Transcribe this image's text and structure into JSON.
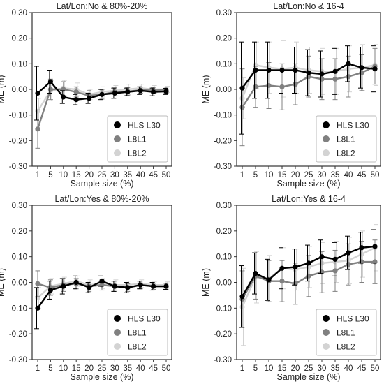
{
  "legend_colors": {
    "HLS L30": "#000000",
    "L8L1": "#808080",
    "L8L2": "#d3d3d3"
  },
  "chart_data": [
    {
      "type": "line",
      "title": "Lat/Lon:No & 80%-20%",
      "xlabel": "Sample size (%)",
      "ylabel": "ME (m)",
      "categories": [
        "1",
        "5",
        "10",
        "15",
        "20",
        "25",
        "30",
        "35",
        "40",
        "45",
        "50"
      ],
      "ylim": [
        -0.3,
        0.3
      ],
      "yticks": [
        "0.30",
        "0.20",
        "0.10",
        "0.00",
        "-0.10",
        "-0.20",
        "-0.30"
      ],
      "grid": false,
      "legend_position": "bottom-right",
      "series": [
        {
          "name": "HLS L30",
          "values": [
            -0.015,
            0.03,
            -0.03,
            -0.04,
            -0.035,
            -0.02,
            -0.015,
            -0.01,
            -0.005,
            -0.01,
            -0.008
          ],
          "errors": [
            0.105,
            0.045,
            0.025,
            0.02,
            0.02,
            0.02,
            0.02,
            0.015,
            0.015,
            0.015,
            0.012
          ]
        },
        {
          "name": "L8L1",
          "values": [
            -0.155,
            0.0,
            0.0,
            -0.01,
            -0.025,
            -0.02,
            -0.01,
            -0.008,
            -0.003,
            -0.004,
            -0.003
          ],
          "errors": [
            0.075,
            0.04,
            0.03,
            0.02,
            0.02,
            0.018,
            0.016,
            0.015,
            0.012,
            0.012,
            0.012
          ]
        },
        {
          "name": "L8L2",
          "values": [
            -0.085,
            -0.005,
            0.005,
            0.0,
            -0.02,
            -0.01,
            -0.005,
            0.0,
            0.005,
            0.0,
            0.0
          ],
          "errors": [
            0.05,
            0.04,
            0.03,
            0.025,
            0.02,
            0.02,
            0.02,
            0.02,
            0.015,
            0.015,
            0.012
          ]
        }
      ]
    },
    {
      "type": "line",
      "title": "Lat/Lon:No & 16-4",
      "xlabel": "Sample size (%)",
      "ylabel": "ME (m)",
      "categories": [
        "1",
        "5",
        "10",
        "15",
        "20",
        "25",
        "30",
        "35",
        "40",
        "45",
        "50"
      ],
      "ylim": [
        -0.3,
        0.3
      ],
      "yticks": [
        "0.30",
        "0.20",
        "0.10",
        "0.00",
        "-0.10",
        "-0.20",
        "-0.30"
      ],
      "grid": false,
      "legend_position": "bottom-right",
      "series": [
        {
          "name": "HLS L30",
          "values": [
            0.005,
            0.075,
            0.075,
            0.075,
            0.075,
            0.065,
            0.06,
            0.07,
            0.1,
            0.085,
            0.08
          ],
          "errors": [
            0.18,
            0.11,
            0.11,
            0.09,
            0.09,
            0.09,
            0.09,
            0.09,
            0.07,
            0.08,
            0.09
          ]
        },
        {
          "name": "L8L1",
          "values": [
            -0.07,
            0.01,
            0.015,
            0.01,
            0.02,
            0.05,
            0.04,
            0.04,
            0.05,
            0.065,
            0.09
          ],
          "errors": [
            0.15,
            0.08,
            0.09,
            0.09,
            0.08,
            0.08,
            0.08,
            0.08,
            0.08,
            0.07,
            0.07
          ]
        },
        {
          "name": "L8L2",
          "values": [
            -0.035,
            0.095,
            0.085,
            0.08,
            0.085,
            0.075,
            0.07,
            0.07,
            0.08,
            0.085,
            0.095
          ],
          "errors": [
            0.08,
            0.09,
            0.1,
            0.11,
            0.1,
            0.09,
            0.09,
            0.09,
            0.09,
            0.09,
            0.08
          ]
        }
      ]
    },
    {
      "type": "line",
      "title": "Lat/Lon:Yes & 80%-20%",
      "xlabel": "Sample size (%)",
      "ylabel": "ME (m)",
      "categories": [
        "1",
        "5",
        "10",
        "15",
        "20",
        "25",
        "30",
        "35",
        "40",
        "45",
        "50"
      ],
      "ylim": [
        -0.3,
        0.3
      ],
      "yticks": [
        "0.30",
        "0.20",
        "0.10",
        "0.00",
        "-0.10",
        "-0.20",
        "-0.30"
      ],
      "grid": false,
      "legend_position": "bottom-right",
      "series": [
        {
          "name": "HLS L30",
          "values": [
            -0.1,
            -0.03,
            -0.015,
            0.0,
            -0.02,
            0.005,
            -0.015,
            -0.02,
            -0.01,
            -0.015,
            -0.015
          ],
          "errors": [
            0.08,
            0.035,
            0.03,
            0.025,
            0.02,
            0.02,
            0.02,
            0.02,
            0.015,
            0.015,
            0.012
          ]
        },
        {
          "name": "L8L1",
          "values": [
            -0.005,
            -0.02,
            -0.01,
            -0.005,
            -0.015,
            -0.01,
            -0.015,
            -0.02,
            -0.01,
            -0.015,
            -0.015
          ],
          "errors": [
            0.05,
            0.03,
            0.025,
            0.02,
            0.02,
            0.02,
            0.02,
            0.015,
            0.015,
            0.012,
            0.012
          ]
        },
        {
          "name": "L8L2",
          "values": [
            -0.06,
            -0.015,
            -0.005,
            0.005,
            -0.01,
            -0.005,
            -0.01,
            -0.01,
            -0.005,
            -0.01,
            -0.01
          ],
          "errors": [
            0.04,
            0.03,
            0.025,
            0.02,
            0.02,
            0.02,
            0.02,
            0.015,
            0.015,
            0.012,
            0.012
          ]
        }
      ]
    },
    {
      "type": "line",
      "title": "Lat/Lon:Yes & 16-4",
      "xlabel": "Sample size (%)",
      "ylabel": "ME (m)",
      "categories": [
        "1",
        "5",
        "10",
        "15",
        "20",
        "25",
        "30",
        "35",
        "40",
        "45",
        "50"
      ],
      "ylim": [
        -0.3,
        0.3
      ],
      "yticks": [
        "0.30",
        "0.20",
        "0.10",
        "0.00",
        "-0.10",
        "-0.20",
        "-0.30"
      ],
      "grid": false,
      "legend_position": "bottom-right",
      "series": [
        {
          "name": "HLS L30",
          "values": [
            -0.055,
            0.035,
            0.01,
            0.055,
            0.06,
            0.075,
            0.1,
            0.09,
            0.115,
            0.135,
            0.14
          ],
          "errors": [
            0.12,
            0.08,
            0.08,
            0.08,
            0.07,
            0.07,
            0.065,
            0.065,
            0.065,
            0.06,
            0.065
          ]
        },
        {
          "name": "L8L1",
          "values": [
            -0.065,
            0.025,
            0.005,
            0.005,
            -0.005,
            0.025,
            0.04,
            0.045,
            0.07,
            0.08,
            0.08
          ],
          "errors": [
            0.11,
            0.09,
            0.08,
            0.08,
            0.08,
            0.08,
            0.08,
            0.08,
            0.08,
            0.08,
            0.085
          ]
        },
        {
          "name": "L8L2",
          "values": [
            -0.095,
            0.02,
            0.015,
            0.055,
            0.05,
            0.06,
            0.075,
            0.08,
            0.085,
            0.11,
            0.135
          ],
          "errors": [
            0.15,
            0.1,
            0.09,
            0.08,
            0.08,
            0.08,
            0.08,
            0.08,
            0.09,
            0.09,
            0.09
          ]
        }
      ]
    }
  ]
}
